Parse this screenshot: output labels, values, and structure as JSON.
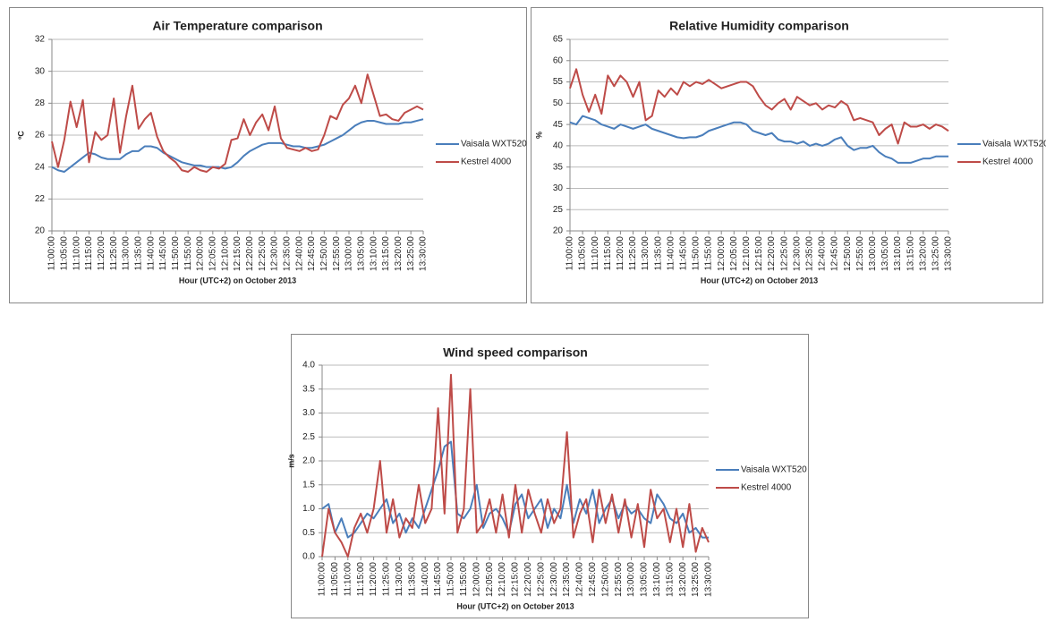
{
  "chart_data": [
    {
      "type": "line",
      "title": "Air Temperature comparison",
      "x_label": "Hour (UTC+2) on October 2013",
      "y_label": "ºC",
      "categories": [
        "11:00:00",
        null,
        "11:05:00",
        null,
        "11:10:00",
        null,
        "11:15:00",
        null,
        "11:20:00",
        null,
        "11:25:00",
        null,
        "11:30:00",
        null,
        "11:35:00",
        null,
        "11:40:00",
        null,
        "11:45:00",
        null,
        "11:50:00",
        null,
        "11:55:00",
        null,
        "12:00:00",
        null,
        "12:05:00",
        null,
        "12:10:00",
        null,
        "12:15:00",
        null,
        "12:20:00",
        null,
        "12:25:00",
        null,
        "12:30:00",
        null,
        "12:35:00",
        null,
        "12:40:00",
        null,
        "12:45:00",
        null,
        "12:50:00",
        null,
        "12:55:00",
        null,
        "13:00:00",
        null,
        "13:05:00",
        null,
        "13:10:00",
        null,
        "13:15:00",
        null,
        "13:20:00",
        null,
        "13:25:00",
        null,
        "13:30:00"
      ],
      "series": [
        {
          "name": "Vaisala WXT520",
          "color": "#4a7ebb",
          "values": [
            24.0,
            23.8,
            23.7,
            24.0,
            24.3,
            24.6,
            24.9,
            24.8,
            24.6,
            24.5,
            24.5,
            24.5,
            24.8,
            25.0,
            25.0,
            25.3,
            25.3,
            25.2,
            24.9,
            24.7,
            24.5,
            24.3,
            24.2,
            24.1,
            24.1,
            24.0,
            24.0,
            24.0,
            23.9,
            24.0,
            24.3,
            24.7,
            25.0,
            25.2,
            25.4,
            25.5,
            25.5,
            25.5,
            25.4,
            25.3,
            25.3,
            25.2,
            25.2,
            25.3,
            25.4,
            25.6,
            25.8,
            26.0,
            26.3,
            26.6,
            26.8,
            26.9,
            26.9,
            26.8,
            26.7,
            26.7,
            26.7,
            26.8,
            26.8,
            26.9,
            27.0
          ]
        },
        {
          "name": "Kestrel 4000",
          "color": "#be4b48",
          "values": [
            25.6,
            24.0,
            25.7,
            28.1,
            26.5,
            28.2,
            24.3,
            26.2,
            25.7,
            26.0,
            28.3,
            24.9,
            27.2,
            29.1,
            26.4,
            27.0,
            27.4,
            25.9,
            25.0,
            24.6,
            24.3,
            23.8,
            23.7,
            24.0,
            23.8,
            23.7,
            24.0,
            23.9,
            24.2,
            25.7,
            25.8,
            27.0,
            26.0,
            26.8,
            27.3,
            26.3,
            27.8,
            25.8,
            25.2,
            25.1,
            25.0,
            25.2,
            25.0,
            25.1,
            26.0,
            27.2,
            27.0,
            27.9,
            28.3,
            29.1,
            28.0,
            29.8,
            28.5,
            27.2,
            27.3,
            27.0,
            26.9,
            27.4,
            27.6,
            27.8,
            27.6
          ]
        }
      ],
      "ylim": [
        20,
        32
      ],
      "yticks": [
        20,
        22,
        24,
        26,
        28,
        30,
        32
      ],
      "grid": true,
      "legend": "right"
    },
    {
      "type": "line",
      "title": "Relative Humidity comparison",
      "x_label": "Hour (UTC+2) on October 2013",
      "y_label": "%",
      "categories": [
        "11:00:00",
        null,
        "11:05:00",
        null,
        "11:10:00",
        null,
        "11:15:00",
        null,
        "11:20:00",
        null,
        "11:25:00",
        null,
        "11:30:00",
        null,
        "11:35:00",
        null,
        "11:40:00",
        null,
        "11:45:00",
        null,
        "11:50:00",
        null,
        "11:55:00",
        null,
        "12:00:00",
        null,
        "12:05:00",
        null,
        "12:10:00",
        null,
        "12:15:00",
        null,
        "12:20:00",
        null,
        "12:25:00",
        null,
        "12:30:00",
        null,
        "12:35:00",
        null,
        "12:40:00",
        null,
        "12:45:00",
        null,
        "12:50:00",
        null,
        "12:55:00",
        null,
        "13:00:00",
        null,
        "13:05:00",
        null,
        "13:10:00",
        null,
        "13:15:00",
        null,
        "13:20:00",
        null,
        "13:25:00",
        null,
        "13:30:00"
      ],
      "series": [
        {
          "name": "Vaisala WXT520",
          "color": "#4a7ebb",
          "values": [
            45.5,
            45.0,
            47.0,
            46.5,
            46.0,
            45.0,
            44.5,
            44.0,
            45.0,
            44.5,
            44.0,
            44.5,
            45.0,
            44.0,
            43.5,
            43.0,
            42.5,
            42.0,
            41.8,
            42.0,
            42.0,
            42.5,
            43.5,
            44.0,
            44.5,
            45.0,
            45.5,
            45.5,
            45.0,
            43.5,
            43.0,
            42.5,
            43.0,
            41.5,
            41.0,
            41.0,
            40.5,
            41.0,
            40.0,
            40.5,
            40.0,
            40.5,
            41.5,
            42.0,
            40.0,
            39.0,
            39.5,
            39.5,
            40.0,
            38.5,
            37.5,
            37.0,
            36.0,
            36.0,
            36.0,
            36.5,
            37.0,
            37.0,
            37.5,
            37.5,
            37.5
          ]
        },
        {
          "name": "Kestrel 4000",
          "color": "#be4b48",
          "values": [
            53.5,
            58.0,
            52.0,
            48.0,
            52.0,
            47.5,
            56.5,
            54.0,
            56.5,
            55.0,
            51.5,
            55.0,
            46.0,
            47.0,
            53.0,
            51.5,
            53.5,
            52.0,
            55.0,
            54.0,
            55.0,
            54.5,
            55.5,
            54.5,
            53.5,
            54.0,
            54.5,
            55.0,
            55.0,
            54.0,
            51.5,
            49.5,
            48.5,
            50.0,
            51.0,
            48.5,
            51.5,
            50.5,
            49.5,
            50.0,
            48.5,
            49.5,
            49.0,
            50.5,
            49.5,
            46.0,
            46.5,
            46.0,
            45.5,
            42.5,
            44.0,
            45.0,
            40.5,
            45.5,
            44.5,
            44.5,
            45.0,
            44.0,
            45.0,
            44.5,
            43.5
          ]
        }
      ],
      "ylim": [
        20,
        65
      ],
      "yticks": [
        20,
        25,
        30,
        35,
        40,
        45,
        50,
        55,
        60,
        65
      ],
      "grid": true,
      "legend": "right"
    },
    {
      "type": "line",
      "title": "Wind speed comparison",
      "x_label": "Hour (UTC+2) on October 2013",
      "y_label": "m/s",
      "categories": [
        "11:00:00",
        null,
        "11:05:00",
        null,
        "11:10:00",
        null,
        "11:15:00",
        null,
        "11:20:00",
        null,
        "11:25:00",
        null,
        "11:30:00",
        null,
        "11:35:00",
        null,
        "11:40:00",
        null,
        "11:45:00",
        null,
        "11:50:00",
        null,
        "11:55:00",
        null,
        "12:00:00",
        null,
        "12:05:00",
        null,
        "12:10:00",
        null,
        "12:15:00",
        null,
        "12:20:00",
        null,
        "12:25:00",
        null,
        "12:30:00",
        null,
        "12:35:00",
        null,
        "12:40:00",
        null,
        "12:45:00",
        null,
        "12:50:00",
        null,
        "12:55:00",
        null,
        "13:00:00",
        null,
        "13:05:00",
        null,
        "13:10:00",
        null,
        "13:15:00",
        null,
        "13:20:00",
        null,
        "13:25:00",
        null,
        "13:30:00"
      ],
      "series": [
        {
          "name": "Vaisala WXT520",
          "color": "#4a7ebb",
          "values": [
            1.0,
            1.1,
            0.5,
            0.8,
            0.4,
            0.5,
            0.7,
            0.9,
            0.8,
            1.0,
            1.2,
            0.7,
            0.9,
            0.5,
            0.8,
            0.6,
            1.0,
            1.4,
            1.8,
            2.3,
            2.4,
            0.9,
            0.8,
            1.0,
            1.5,
            0.6,
            0.9,
            1.0,
            0.8,
            0.5,
            1.1,
            1.3,
            0.8,
            1.0,
            1.2,
            0.6,
            1.0,
            0.8,
            1.5,
            0.7,
            1.2,
            0.9,
            1.4,
            0.7,
            1.0,
            1.2,
            0.8,
            1.1,
            0.9,
            1.0,
            0.8,
            0.7,
            1.3,
            1.1,
            0.8,
            0.7,
            0.9,
            0.5,
            0.6,
            0.4,
            0.4
          ]
        },
        {
          "name": "Kestrel 4000",
          "color": "#be4b48",
          "values": [
            0.0,
            1.0,
            0.5,
            0.3,
            0.0,
            0.6,
            0.9,
            0.5,
            1.0,
            2.0,
            0.5,
            1.2,
            0.4,
            0.8,
            0.6,
            1.5,
            0.7,
            1.0,
            3.1,
            0.9,
            3.8,
            0.5,
            1.0,
            3.5,
            0.5,
            0.7,
            1.2,
            0.5,
            1.3,
            0.4,
            1.5,
            0.5,
            1.4,
            0.9,
            0.5,
            1.2,
            0.7,
            1.0,
            2.6,
            0.4,
            0.9,
            1.2,
            0.3,
            1.4,
            0.7,
            1.3,
            0.5,
            1.2,
            0.4,
            1.1,
            0.2,
            1.4,
            0.8,
            1.0,
            0.3,
            1.0,
            0.2,
            1.1,
            0.1,
            0.6,
            0.3
          ]
        }
      ],
      "ylim": [
        0,
        4
      ],
      "yticks": [
        {
          "value": 0,
          "label": "0.0"
        },
        {
          "value": 0.5,
          "label": "0.5"
        },
        {
          "value": 1,
          "label": "1.0"
        },
        {
          "value": 1.5,
          "label": "1.5"
        },
        {
          "value": 2,
          "label": "2.0"
        },
        {
          "value": 2.5,
          "label": "2.5"
        },
        {
          "value": 3,
          "label": "3.0"
        },
        {
          "value": 3.5,
          "label": "3.5"
        },
        {
          "value": 4,
          "label": "4.0"
        }
      ],
      "grid": true,
      "legend": "right"
    }
  ]
}
